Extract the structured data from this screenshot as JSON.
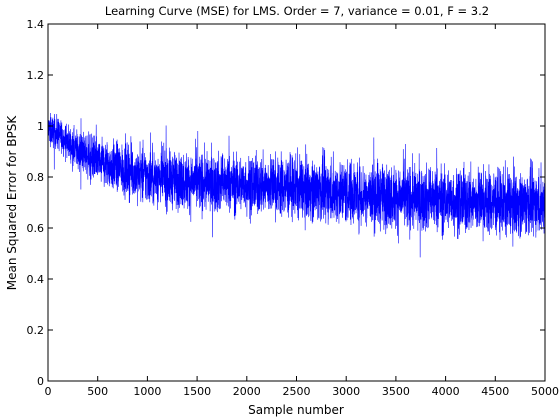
{
  "chart_data": {
    "type": "line",
    "title": "Learning Curve (MSE) for LMS. Order = 7, variance = 0.01, F = 3.2",
    "xlabel": "Sample number",
    "ylabel": "Mean Squared Error for BPSK",
    "xlim": [
      0,
      5000
    ],
    "ylim": [
      0,
      1.4
    ],
    "xticks": [
      0,
      500,
      1000,
      1500,
      2000,
      2500,
      3000,
      3500,
      4000,
      4500,
      5000
    ],
    "yticks": [
      0,
      0.2,
      0.4,
      0.6,
      0.8,
      1,
      1.2,
      1.4
    ],
    "grid": false,
    "legend": "none",
    "line_color": "#0000ff",
    "trend": {
      "x": [
        0,
        100,
        250,
        500,
        1000,
        1500,
        2000,
        2500,
        3000,
        3500,
        4000,
        4500,
        5000
      ],
      "y": [
        0.99,
        0.97,
        0.92,
        0.86,
        0.8,
        0.78,
        0.77,
        0.76,
        0.74,
        0.72,
        0.71,
        0.7,
        0.7
      ]
    },
    "noise_amplitude": [
      0.04,
      0.045,
      0.05,
      0.065,
      0.075,
      0.08,
      0.08,
      0.085,
      0.09,
      0.09,
      0.09,
      0.09,
      0.09
    ],
    "samples": 5000
  }
}
